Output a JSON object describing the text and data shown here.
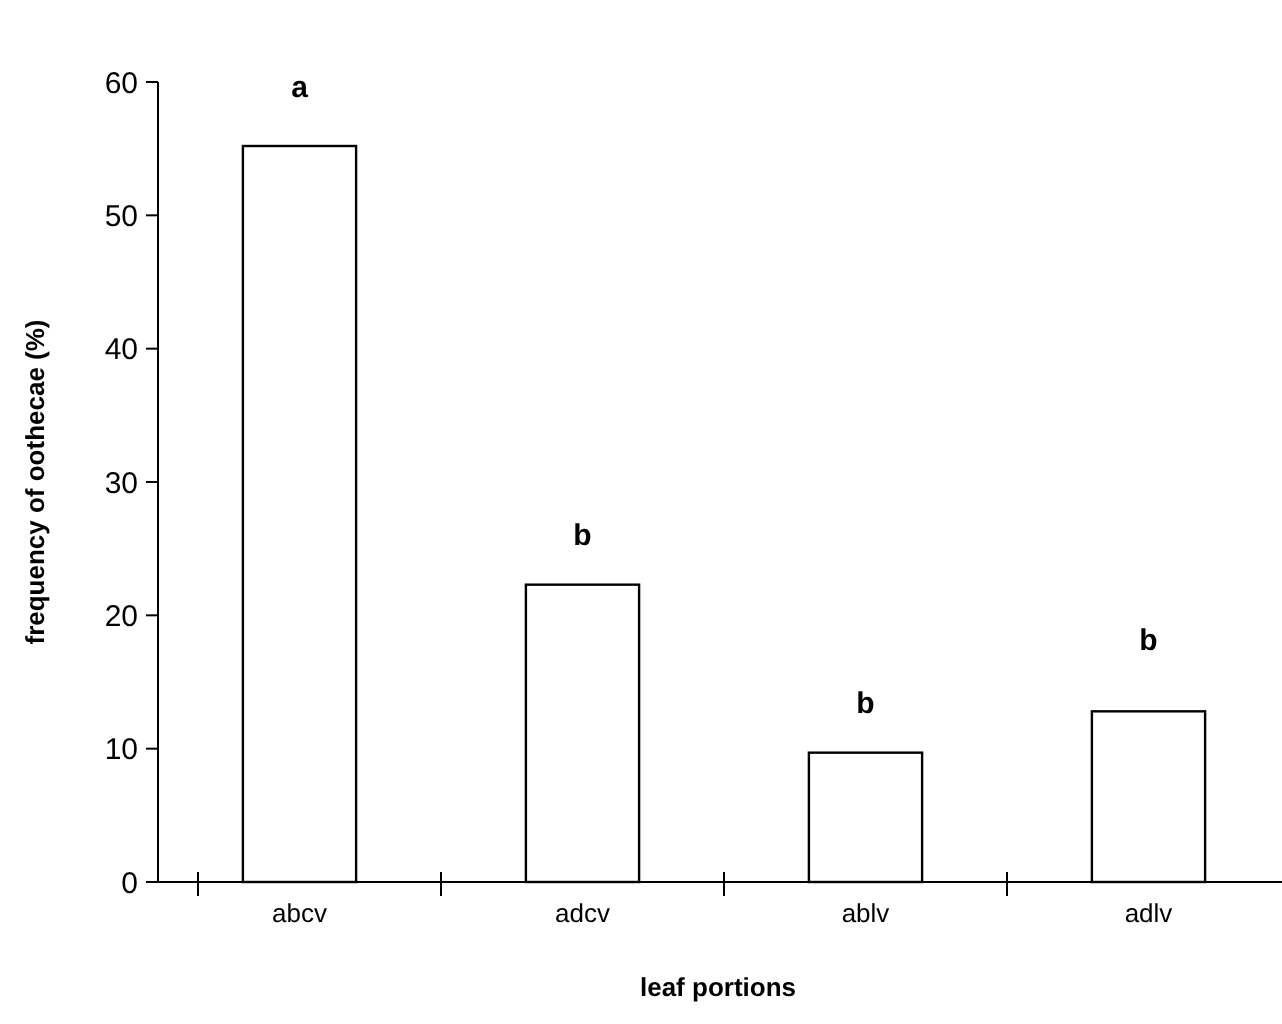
{
  "chart_data": {
    "type": "bar",
    "xlabel": "leaf portions",
    "ylabel": "frequency of oothecae (%)",
    "categories": [
      "abcv",
      "adcv",
      "ablv",
      "adlv"
    ],
    "values": [
      55.2,
      22.3,
      9.7,
      12.8
    ],
    "color": "#ffffff",
    "ylim": [
      0,
      60
    ],
    "yticks": [
      0,
      10,
      20,
      30,
      40,
      50,
      60
    ],
    "grid": false,
    "annotations": [
      "a",
      "b",
      "b",
      "b"
    ]
  }
}
